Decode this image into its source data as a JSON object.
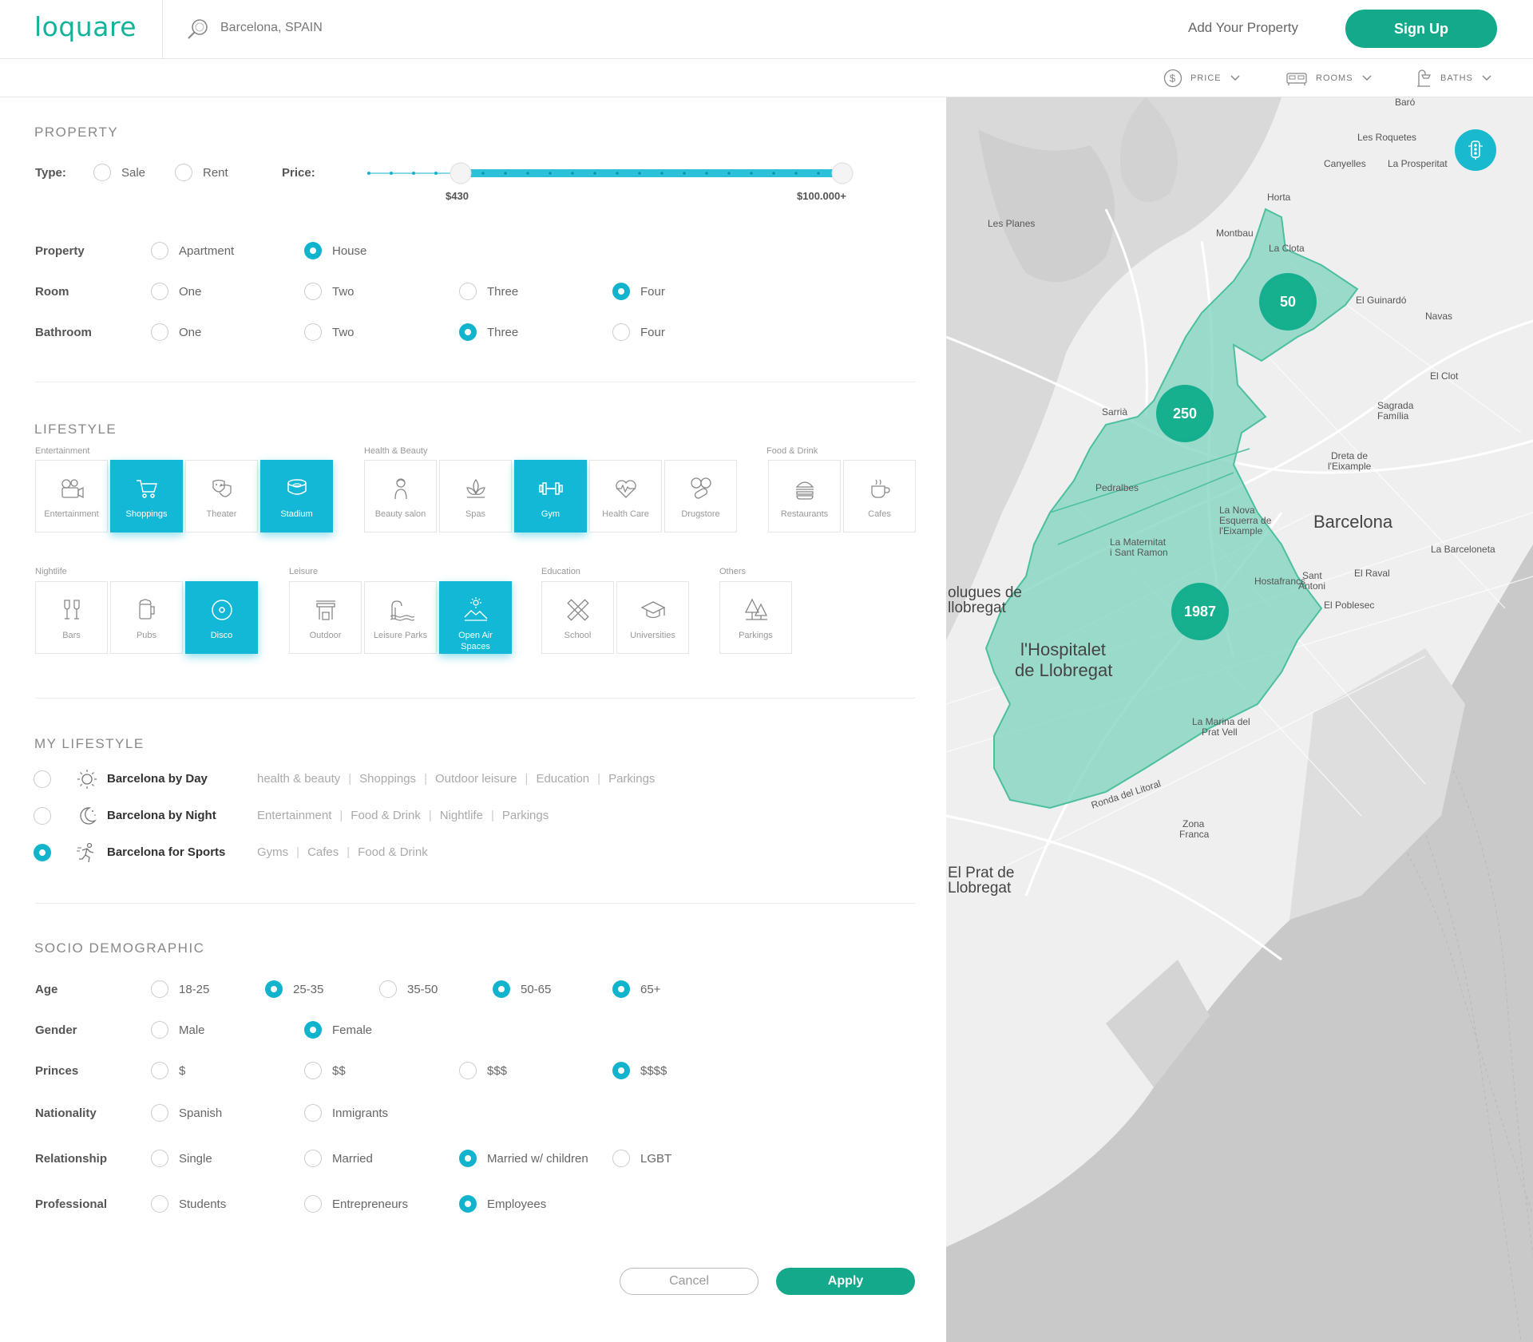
{
  "header": {
    "logo": "loquare",
    "search_text": "Barcelona, SPAIN",
    "add_property": "Add Your Property",
    "signup": "Sign Up"
  },
  "filters": {
    "price": "PRICE",
    "rooms": "ROOMS",
    "baths": "BATHS"
  },
  "property": {
    "title": "PROPERTY",
    "type_label": "Type:",
    "type_options": [
      "Sale",
      "Rent"
    ],
    "price_label": "Price:",
    "price_min": "$430",
    "price_max": "$100.000+",
    "price_range_fraction": [
      0.2,
      1.0
    ],
    "property_label": "Property",
    "property_options": [
      "Apartment",
      "House"
    ],
    "property_selected": "House",
    "room_label": "Room",
    "room_options": [
      "One",
      "Two",
      "Three",
      "Four"
    ],
    "room_selected": "Four",
    "bathroom_label": "Bathroom",
    "bathroom_options": [
      "One",
      "Two",
      "Three",
      "Four"
    ],
    "bathroom_selected": "Three"
  },
  "lifestyle": {
    "title": "LIFESTYLE",
    "groups": {
      "entertainment": "Entertainment",
      "health": "Health & Beauty",
      "food": "Food & Drink",
      "nightlife": "Nightlife",
      "leisure": "Leisure",
      "education": "Education",
      "others": "Others"
    },
    "tiles": {
      "entertainment": "Entertainment",
      "shoppings": "Shoppings",
      "theater": "Theater",
      "stadium": "Stadium",
      "beauty": "Beauty salon",
      "spas": "Spas",
      "gym": "Gym",
      "healthcare": "Health Care",
      "drugstore": "Drugstore",
      "restaurants": "Restaurants",
      "cafes": "Cafes",
      "bars": "Bars",
      "pubs": "Pubs",
      "disco": "Disco",
      "outdoor": "Outdoor",
      "leisureparks": "Leisure Parks",
      "openair1": "Open Air",
      "openair2": "Spaces",
      "school": "School",
      "universities": "Universities",
      "parkings": "Parkings"
    },
    "selected": [
      "Shoppings",
      "Stadium",
      "Gym",
      "Disco",
      "Open Air Spaces"
    ]
  },
  "my_lifestyle": {
    "title": "MY LIFESTYLE",
    "items": [
      {
        "name": "Barcelona by Day",
        "tags": [
          "health & beauty",
          "Shoppings",
          "Outdoor leisure",
          "Education",
          "Parkings"
        ],
        "selected": false
      },
      {
        "name": "Barcelona by Night",
        "tags": [
          "Entertainment",
          "Food & Drink",
          "Nightlife",
          "Parkings"
        ],
        "selected": false
      },
      {
        "name": "Barcelona for Sports",
        "tags": [
          "Gyms",
          "Cafes",
          "Food & Drink"
        ],
        "selected": true
      }
    ]
  },
  "socio": {
    "title": "SOCIO DEMOGRAPHIC",
    "age_label": "Age",
    "age_options": [
      "18-25",
      "25-35",
      "35-50",
      "50-65",
      "65+"
    ],
    "age_selected": [
      "25-35",
      "50-65",
      "65+"
    ],
    "gender_label": "Gender",
    "gender_options": [
      "Male",
      "Female"
    ],
    "gender_selected": "Female",
    "princes_label": "Princes",
    "princes_options": [
      "$",
      "$$",
      "$$$",
      "$$$$"
    ],
    "princes_selected": "$$$$",
    "nationality_label": "Nationality",
    "nationality_options": [
      "Spanish",
      "Inmigrants"
    ],
    "relationship_label": "Relationship",
    "relationship_options": [
      "Single",
      "Married",
      "Married w/ children",
      "LGBT"
    ],
    "relationship_selected": "Married w/ children",
    "professional_label": "Professional",
    "professional_options": [
      "Students",
      "Entrepreneurs",
      "Employees"
    ],
    "professional_selected": "Employees"
  },
  "actions": {
    "cancel": "Cancel",
    "apply": "Apply"
  },
  "map": {
    "pins": [
      "50",
      "250",
      "1987"
    ],
    "labels": {
      "barcelona": "Barcelona",
      "hospitalet1": "l'Hospitalet",
      "hospitalet2": "de Llobregat",
      "sarria": "Sarrià",
      "pedralbes": "Pedralbes",
      "horta": "Horta",
      "lesplanes": "Les Planes",
      "montbau": "Montbau",
      "laclota": "La Clota",
      "canyelles": "Canyelles",
      "guinardo": "El Guinardó",
      "navas": "Navas",
      "clot": "El Clot",
      "sagrada1": "Sagrada",
      "sagrada2": "Família",
      "poblenou": "El Poblesec",
      "hostafrancs": "Hostafrancs",
      "santantoni1": "Sant",
      "santantoni2": "Antoni",
      "elraval": "El Raval",
      "zonafranca1": "Zona",
      "zonafranca2": "Franca",
      "elprat1": "El Prat de",
      "elprat2": "Llobregat",
      "ronda": "Ronda del Litoral",
      "barceloneta": "La Barceloneta",
      "lamarina1": "La Marina del",
      "lamarina2": "Prat Vell",
      "laprosperitat": "La Prosperitat",
      "lesroquetes": "Les Roquetes",
      "baro": "Baró",
      "novaesquerra1": "La Nova",
      "novaesquerra2": "Esquerra de",
      "novaesquerra3": "l'Eixample",
      "maternitat1": "La Maternitat",
      "maternitat2": "i Sant Ramon",
      "dreta1": "Dreta de",
      "dreta2": "l'Eixample",
      "cornella1": "olugues de",
      "cornella2": "llobregat"
    }
  },
  "colors": {
    "brand_green": "#13a98a",
    "accent_cyan": "#12b8d6",
    "map_area": "#7ed3bd"
  }
}
